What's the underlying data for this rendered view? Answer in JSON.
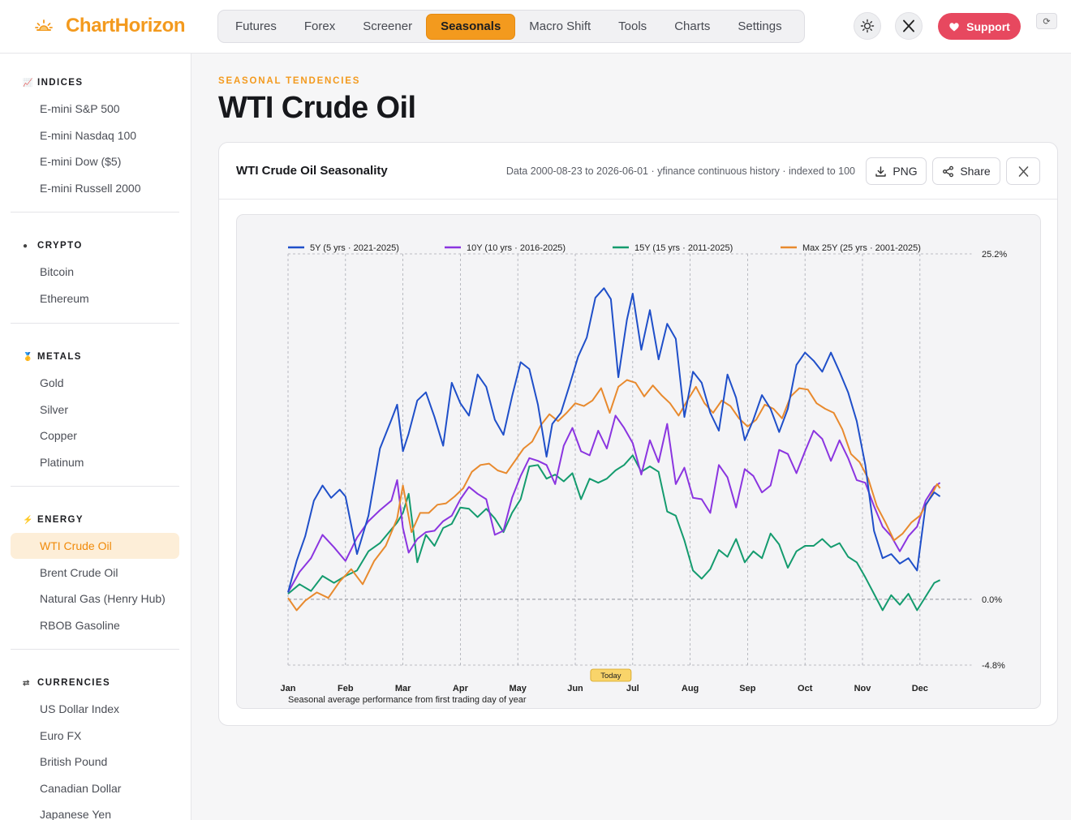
{
  "header": {
    "brand": "ChartHorizon",
    "nav": [
      "Futures",
      "Forex",
      "Screener",
      "Seasonals",
      "Macro Shift",
      "Tools",
      "Charts",
      "Settings"
    ],
    "active_nav": "Seasonals",
    "theme_icon": "sun-icon",
    "x_icon": "x-logo-icon",
    "support_label": "Support",
    "mini_label": "⟳"
  },
  "sidebar": {
    "sections": [
      {
        "title": "INDICES",
        "icon": "chart-icon",
        "items": [
          "E-mini S&P 500",
          "E-mini Nasdaq 100",
          "E-mini Dow ($5)",
          "E-mini Russell 2000"
        ]
      },
      {
        "title": "CRYPTO",
        "icon": "coin-icon",
        "items": [
          "Bitcoin",
          "Ethereum"
        ]
      },
      {
        "title": "METALS",
        "icon": "medal-icon",
        "items": [
          "Gold",
          "Silver",
          "Copper",
          "Platinum"
        ]
      },
      {
        "title": "ENERGY",
        "icon": "bolt-icon",
        "items": [
          "WTI Crude Oil",
          "Brent Crude Oil",
          "Natural Gas (Henry Hub)",
          "RBOB Gasoline"
        ]
      },
      {
        "title": "CURRENCIES",
        "icon": "currency-icon",
        "items": [
          "US Dollar Index",
          "Euro FX",
          "British Pound",
          "Canadian Dollar",
          "Japanese Yen"
        ]
      }
    ],
    "active_item": "WTI Crude Oil"
  },
  "page": {
    "eyebrow": "SEASONAL TENDENCIES",
    "title": "WTI Crude Oil"
  },
  "card": {
    "title": "WTI Crude Oil Seasonality",
    "meta": "Data 2000-08-23 to 2026-06-01 · yfinance continuous history · indexed to 100",
    "png_label": "PNG",
    "share_label": "Share"
  },
  "colors": {
    "accent": "#f39a1e",
    "support": "#e7485f",
    "series": [
      "#1f4fc9",
      "#8b35e0",
      "#149b6e",
      "#e88a2e"
    ]
  },
  "chart_data": {
    "type": "line",
    "x_axis_label": "Seasonal average performance from first trading day of year",
    "months": [
      "Jan",
      "Feb",
      "Mar",
      "Apr",
      "May",
      "Jun",
      "Jul",
      "Aug",
      "Sep",
      "Oct",
      "Nov",
      "Dec"
    ],
    "y_ticks": [
      "25.2%",
      "0.0%",
      "-4.8%"
    ],
    "ylim": [
      -4.8,
      25.2
    ],
    "today_label": "Today",
    "today_x": 5.62,
    "legend_position": "top",
    "series": [
      {
        "name": "5Y (5 yrs · 2021-2025)",
        "x": [
          0,
          0.15,
          0.3,
          0.45,
          0.6,
          0.75,
          0.9,
          1.0,
          1.2,
          1.4,
          1.6,
          1.8,
          1.9,
          2.0,
          2.1,
          2.25,
          2.4,
          2.55,
          2.7,
          2.85,
          3.0,
          3.15,
          3.3,
          3.45,
          3.6,
          3.75,
          3.9,
          4.05,
          4.2,
          4.35,
          4.5,
          4.6,
          4.75,
          4.9,
          5.05,
          5.2,
          5.35,
          5.5,
          5.62,
          5.75,
          5.9,
          6.0,
          6.15,
          6.3,
          6.45,
          6.6,
          6.75,
          6.9,
          7.05,
          7.2,
          7.35,
          7.5,
          7.65,
          7.8,
          7.95,
          8.1,
          8.25,
          8.4,
          8.55,
          8.7,
          8.85,
          9.0,
          9.15,
          9.3,
          9.45,
          9.6,
          9.75,
          9.9,
          10.05,
          10.2,
          10.35,
          10.5,
          10.65,
          10.8,
          10.95,
          11.1,
          11.25,
          11.35
        ],
        "y": [
          0.5,
          2.8,
          4.6,
          7.2,
          8.3,
          7.4,
          8.0,
          7.5,
          3.3,
          6.1,
          11.0,
          13.1,
          14.2,
          10.8,
          12.1,
          14.5,
          15.1,
          13.3,
          11.2,
          15.8,
          14.3,
          13.4,
          16.4,
          15.5,
          13.1,
          12.0,
          14.8,
          17.3,
          16.8,
          14.2,
          10.4,
          12.8,
          13.6,
          15.6,
          17.7,
          19.1,
          22.0,
          22.7,
          21.9,
          16.2,
          20.4,
          22.3,
          18.2,
          21.1,
          17.5,
          20.1,
          19.0,
          13.3,
          16.6,
          15.8,
          13.6,
          12.3,
          16.4,
          14.7,
          11.6,
          13.1,
          14.9,
          13.9,
          12.2,
          13.9,
          17.1,
          18.0,
          17.4,
          16.6,
          18.0,
          16.6,
          15.1,
          13.0,
          9.8,
          5.0,
          3.0,
          3.3,
          2.6,
          3.0,
          2.1,
          6.9,
          7.8,
          7.5
        ]
      },
      {
        "name": "10Y (10 yrs · 2016-2025)",
        "x": [
          0,
          0.2,
          0.4,
          0.6,
          0.8,
          1.0,
          1.2,
          1.4,
          1.6,
          1.8,
          1.9,
          2.0,
          2.1,
          2.25,
          2.4,
          2.55,
          2.7,
          2.85,
          3.0,
          3.15,
          3.3,
          3.45,
          3.6,
          3.75,
          3.9,
          4.05,
          4.2,
          4.35,
          4.5,
          4.65,
          4.8,
          4.95,
          5.1,
          5.25,
          5.4,
          5.55,
          5.7,
          5.85,
          6.0,
          6.15,
          6.3,
          6.45,
          6.6,
          6.75,
          6.9,
          7.05,
          7.2,
          7.35,
          7.5,
          7.65,
          7.8,
          7.95,
          8.1,
          8.25,
          8.4,
          8.55,
          8.7,
          8.85,
          9.0,
          9.15,
          9.3,
          9.45,
          9.6,
          9.75,
          9.9,
          10.05,
          10.2,
          10.35,
          10.5,
          10.65,
          10.8,
          10.95,
          11.1,
          11.25,
          11.35
        ],
        "y": [
          0.5,
          2.0,
          3.0,
          4.7,
          3.8,
          2.8,
          4.5,
          5.7,
          6.5,
          7.2,
          8.7,
          5.2,
          3.4,
          4.4,
          4.9,
          5.0,
          5.7,
          6.1,
          7.3,
          8.2,
          7.7,
          7.3,
          4.7,
          5.0,
          7.4,
          9.0,
          10.3,
          10.1,
          9.8,
          8.4,
          11.2,
          12.5,
          10.8,
          10.5,
          12.3,
          11.0,
          13.4,
          12.5,
          11.4,
          9.1,
          11.6,
          10.0,
          12.8,
          8.4,
          9.6,
          7.4,
          7.3,
          6.3,
          9.8,
          8.9,
          6.7,
          9.5,
          9.0,
          7.8,
          8.3,
          10.9,
          10.6,
          9.2,
          10.8,
          12.3,
          11.7,
          10.1,
          11.6,
          10.3,
          8.7,
          8.5,
          6.8,
          5.3,
          4.6,
          3.5,
          4.6,
          5.3,
          7.2,
          8.2,
          8.5
        ]
      },
      {
        "name": "15Y (15 yrs · 2011-2025)",
        "x": [
          0,
          0.2,
          0.4,
          0.6,
          0.8,
          1.0,
          1.2,
          1.4,
          1.6,
          1.8,
          1.9,
          2.0,
          2.1,
          2.25,
          2.4,
          2.55,
          2.7,
          2.85,
          3.0,
          3.15,
          3.3,
          3.45,
          3.6,
          3.75,
          3.9,
          4.05,
          4.2,
          4.35,
          4.5,
          4.65,
          4.8,
          4.95,
          5.1,
          5.25,
          5.4,
          5.55,
          5.7,
          5.85,
          6.0,
          6.15,
          6.3,
          6.45,
          6.6,
          6.75,
          6.9,
          7.05,
          7.2,
          7.35,
          7.5,
          7.65,
          7.8,
          7.95,
          8.1,
          8.25,
          8.4,
          8.55,
          8.7,
          8.85,
          9.0,
          9.15,
          9.3,
          9.45,
          9.6,
          9.75,
          9.9,
          10.05,
          10.2,
          10.35,
          10.5,
          10.65,
          10.8,
          10.95,
          11.1,
          11.25,
          11.35
        ],
        "y": [
          0.4,
          1.1,
          0.6,
          1.7,
          1.2,
          1.7,
          2.1,
          3.5,
          4.1,
          5.1,
          5.6,
          6.3,
          7.7,
          2.7,
          4.7,
          3.9,
          5.2,
          5.5,
          6.7,
          6.6,
          6.0,
          6.6,
          5.9,
          4.9,
          6.3,
          7.3,
          9.7,
          9.8,
          8.8,
          9.1,
          8.6,
          9.2,
          7.3,
          8.8,
          8.5,
          8.8,
          9.4,
          9.8,
          10.5,
          9.3,
          9.7,
          9.3,
          6.4,
          6.1,
          4.3,
          2.1,
          1.5,
          2.2,
          3.6,
          3.1,
          4.4,
          2.7,
          3.5,
          3.0,
          4.8,
          4.0,
          2.3,
          3.5,
          3.9,
          3.9,
          4.4,
          3.8,
          4.1,
          3.1,
          2.7,
          1.6,
          0.4,
          -0.8,
          0.3,
          -0.4,
          0.4,
          -0.8,
          0.2,
          1.2,
          1.4
        ]
      },
      {
        "name": "Max 25Y (25 yrs · 2001-2025)",
        "x": [
          0,
          0.15,
          0.3,
          0.5,
          0.7,
          0.9,
          1.1,
          1.3,
          1.5,
          1.7,
          1.9,
          2.0,
          2.15,
          2.3,
          2.45,
          2.6,
          2.75,
          2.9,
          3.05,
          3.2,
          3.35,
          3.5,
          3.65,
          3.8,
          3.95,
          4.1,
          4.25,
          4.4,
          4.55,
          4.7,
          4.85,
          5.0,
          5.15,
          5.3,
          5.45,
          5.6,
          5.75,
          5.9,
          6.05,
          6.2,
          6.35,
          6.5,
          6.65,
          6.8,
          6.95,
          7.1,
          7.25,
          7.4,
          7.55,
          7.7,
          7.85,
          8.0,
          8.15,
          8.3,
          8.45,
          8.6,
          8.75,
          8.9,
          9.05,
          9.2,
          9.35,
          9.5,
          9.65,
          9.8,
          9.95,
          10.1,
          10.25,
          10.4,
          10.55,
          10.7,
          10.85,
          11.0,
          11.15,
          11.3,
          11.35
        ],
        "y": [
          0.1,
          -0.8,
          -0.1,
          0.5,
          0.1,
          1.3,
          2.2,
          1.1,
          2.8,
          3.9,
          5.9,
          8.3,
          4.9,
          6.3,
          6.3,
          6.9,
          7.0,
          7.5,
          8.1,
          9.3,
          9.8,
          9.9,
          9.4,
          9.2,
          10.1,
          11.0,
          11.5,
          12.7,
          13.5,
          13.0,
          13.6,
          14.3,
          14.1,
          14.5,
          15.4,
          13.6,
          15.5,
          16.0,
          15.8,
          14.8,
          15.6,
          14.9,
          14.3,
          13.4,
          14.5,
          15.5,
          14.3,
          13.6,
          14.5,
          14.1,
          13.2,
          12.6,
          13.1,
          14.2,
          13.9,
          13.2,
          14.8,
          15.4,
          15.3,
          14.3,
          13.9,
          13.6,
          12.4,
          10.6,
          10.0,
          8.8,
          6.8,
          5.6,
          4.3,
          4.8,
          5.6,
          6.1,
          7.2,
          8.4,
          8.1
        ]
      }
    ]
  }
}
